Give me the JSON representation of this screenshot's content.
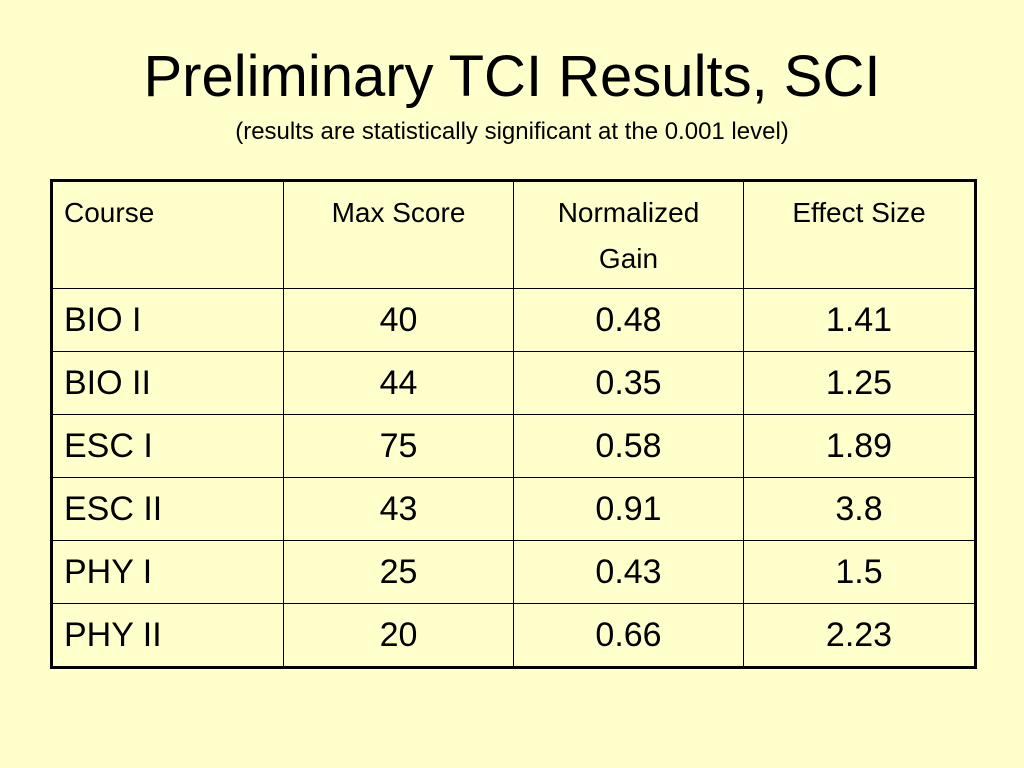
{
  "slide": {
    "title": "Preliminary TCI Results, SCI",
    "subtitle": "(results are statistically significant at the 0.001 level)"
  },
  "table": {
    "headers": {
      "course": "Course",
      "max_score": "Max Score",
      "normalized_gain_line1": "Normalized",
      "normalized_gain_line2": "Gain",
      "effect_size": "Effect Size"
    },
    "rows": [
      {
        "course": "BIO I",
        "max_score": "40",
        "normalized_gain": "0.48",
        "effect_size": "1.41"
      },
      {
        "course": "BIO II",
        "max_score": "44",
        "normalized_gain": "0.35",
        "effect_size": "1.25"
      },
      {
        "course": "ESC I",
        "max_score": "75",
        "normalized_gain": "0.58",
        "effect_size": "1.89"
      },
      {
        "course": "ESC II",
        "max_score": "43",
        "normalized_gain": "0.91",
        "effect_size": "3.8"
      },
      {
        "course": "PHY I",
        "max_score": "25",
        "normalized_gain": "0.43",
        "effect_size": "1.5"
      },
      {
        "course": "PHY II",
        "max_score": "20",
        "normalized_gain": "0.66",
        "effect_size": "2.23"
      }
    ]
  },
  "colors": {
    "background": "#ffffcc",
    "text": "#000000",
    "border": "#000000"
  }
}
